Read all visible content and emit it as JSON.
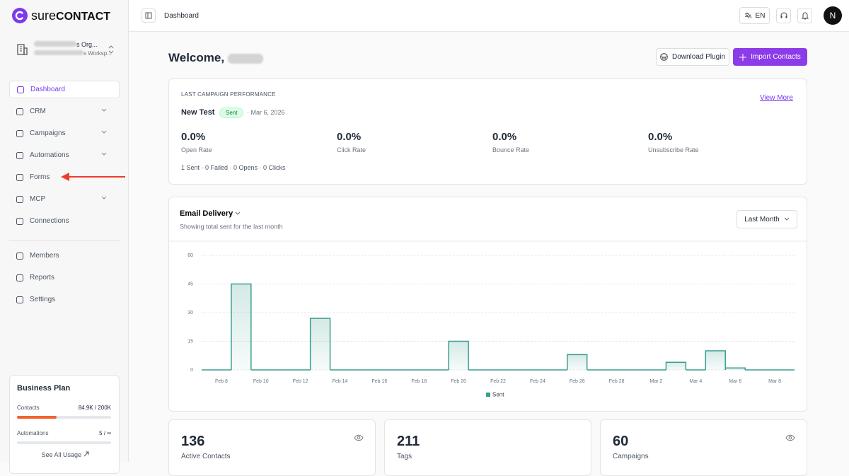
{
  "sidebar": {
    "brand": {
      "prefix": "sure",
      "suffix": "CONTACT"
    },
    "org": {
      "name": "s Org...",
      "workspace": "s Worksp..."
    },
    "nav": [
      "Dashboard",
      "CRM",
      "Campaigns",
      "Automations",
      "Forms",
      "MCP",
      "Connections"
    ],
    "nav_secondary": [
      "Members",
      "Reports",
      "Settings"
    ],
    "plan": {
      "title": "Business Plan",
      "rows": [
        {
          "label": "Contacts",
          "value": "84.9K / 200K"
        },
        {
          "label": "Automations",
          "value": "5 / ∞"
        }
      ],
      "link": "See All Usage"
    }
  },
  "topbar": {
    "breadcrumb": "Dashboard",
    "language": "EN",
    "avatar": "N"
  },
  "header": {
    "welcome": "Welcome,",
    "buttons": [
      "Download Plugin",
      "Import Contacts"
    ]
  },
  "campaign": {
    "heading": "LAST CAMPAIGN PERFORMANCE",
    "link": "View More",
    "name": "New Test",
    "status": "Sent",
    "date": "· Mar 6, 2026",
    "metrics": [
      {
        "value": "0.0%",
        "label": "Open Rate"
      },
      {
        "value": "0.0%",
        "label": "Click Rate"
      },
      {
        "value": "0.0%",
        "label": "Bounce Rate"
      },
      {
        "value": "0.0%",
        "label": "Unsubscribe Rate"
      }
    ],
    "summary": "1 Sent · 0 Failed · 0 Opens · 0 Clicks"
  },
  "delivery": {
    "range": "Last Month"
  },
  "stats": [
    {
      "value": 136,
      "label": "Active Contacts"
    },
    {
      "value": 211,
      "label": "Tags"
    },
    {
      "value": 60,
      "label": "Campaigns"
    }
  ],
  "chart_data": {
    "type": "area",
    "title": "Email Delivery",
    "subtitle": "Showing total sent for the last month",
    "categories": [
      null,
      "Feb 8",
      null,
      "Feb 10",
      null,
      "Feb 12",
      null,
      "Feb 14",
      null,
      "Feb 16",
      null,
      "Feb 18",
      null,
      "Feb 20",
      null,
      "Feb 22",
      null,
      "Feb 24",
      null,
      "Feb 26",
      null,
      "Feb 28",
      null,
      "Mar 2",
      null,
      "Mar 4",
      null,
      "Mar 6",
      null,
      "Mar 8",
      null
    ],
    "series": [
      {
        "name": "Sent",
        "color": "#3a9e8f",
        "values": [
          0,
          0,
          45,
          0,
          0,
          0,
          27,
          0,
          0,
          0,
          0,
          0,
          0,
          15,
          0,
          0,
          0,
          0,
          0,
          8,
          0,
          0,
          0,
          0,
          4,
          0,
          10,
          1,
          0,
          0,
          0
        ]
      }
    ],
    "ylim": [
      0,
      60
    ],
    "yticks": [
      0,
      15,
      30,
      45,
      60
    ],
    "grid": true,
    "legend": "bottom"
  }
}
